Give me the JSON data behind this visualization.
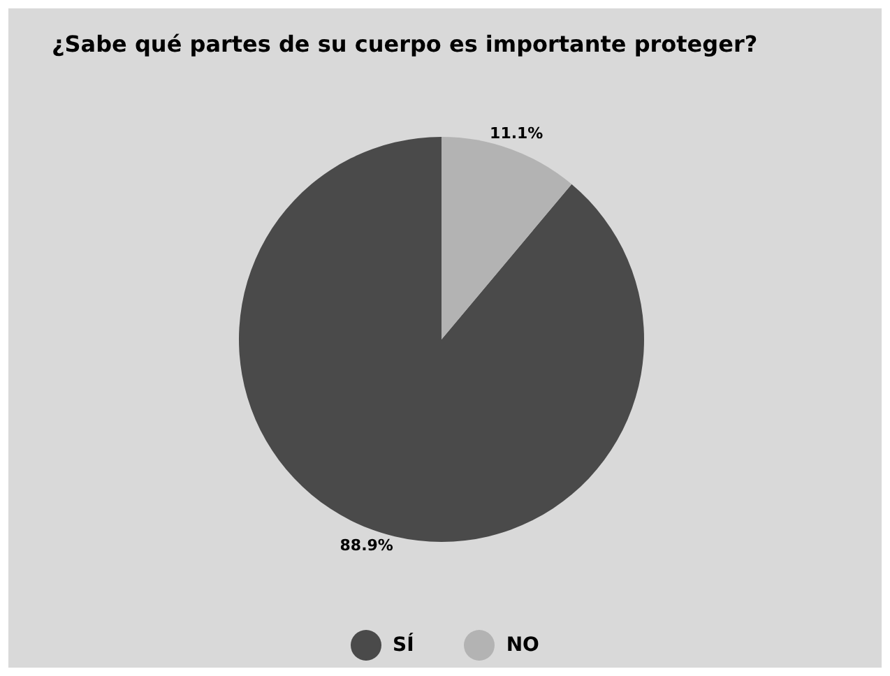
{
  "chart_data": {
    "type": "pie",
    "title": "¿Sabe qué partes de su cuerpo es importante proteger?",
    "categories": [
      "SÍ",
      "NO"
    ],
    "values": [
      88.9,
      11.1
    ],
    "colors": [
      "#4a4a4a",
      "#b3b3b3"
    ],
    "value_labels": [
      "88.9%",
      "11.1%"
    ],
    "legend": "bottom"
  }
}
